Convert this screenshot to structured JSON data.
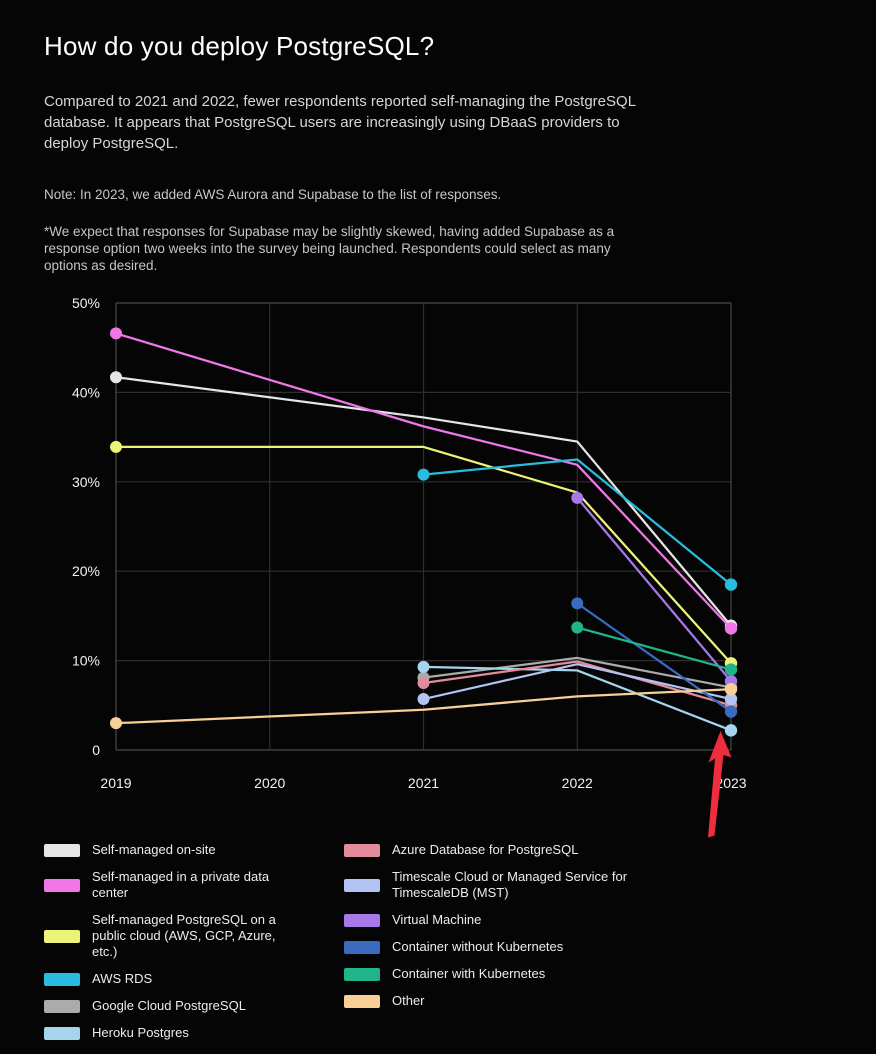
{
  "header": {
    "title": "How do you deploy PostgreSQL?",
    "intro": "Compared to 2021 and 2022, fewer respondents reported self-managing the PostgreSQL database. It appears that PostgreSQL users are increasingly using DBaaS providers to deploy PostgreSQL.",
    "note": "Note: In 2023, we added AWS Aurora and Supabase to the list of responses.",
    "footnote": "*We expect that responses for Supabase may be slightly skewed, having added Supabase as a response option two weeks into the survey being launched. Respondents could select as many options as desired."
  },
  "chart_data": {
    "type": "line",
    "categories": [
      "2019",
      "2020",
      "2021",
      "2022",
      "2023"
    ],
    "x_numeric": [
      2019,
      2020,
      2021,
      2022,
      2023
    ],
    "ylabel": "",
    "xlabel": "",
    "ylim": [
      0,
      50
    ],
    "yticks": [
      {
        "value": 50,
        "label": "50%"
      },
      {
        "value": 40,
        "label": "40%"
      },
      {
        "value": 30,
        "label": "30%"
      },
      {
        "value": 20,
        "label": "20%"
      },
      {
        "value": 10,
        "label": "10%"
      },
      {
        "value": 0,
        "label": "0"
      }
    ],
    "grid": true,
    "legend_position": "bottom-two-columns",
    "series": [
      {
        "name": "Self-managed on-site",
        "color": "#e5e5e5",
        "points": [
          {
            "year": 2019,
            "value": 41.7
          },
          {
            "year": 2021,
            "value": 37.2
          },
          {
            "year": 2022,
            "value": 34.5
          },
          {
            "year": 2023,
            "value": 13.9
          }
        ]
      },
      {
        "name": "Self-managed in a private data center",
        "color": "#f177e8",
        "points": [
          {
            "year": 2019,
            "value": 46.6
          },
          {
            "year": 2021,
            "value": 36.2
          },
          {
            "year": 2022,
            "value": 31.9
          },
          {
            "year": 2023,
            "value": 13.6
          }
        ]
      },
      {
        "name": "Self-managed PostgreSQL on a public cloud (AWS, GCP, Azure, etc.)",
        "color": "#edf278",
        "points": [
          {
            "year": 2019,
            "value": 33.9
          },
          {
            "year": 2021,
            "value": 33.9
          },
          {
            "year": 2022,
            "value": 28.8
          },
          {
            "year": 2023,
            "value": 9.7
          }
        ]
      },
      {
        "name": "AWS RDS",
        "color": "#29bcdf",
        "points": [
          {
            "year": 2021,
            "value": 30.8
          },
          {
            "year": 2022,
            "value": 32.5
          },
          {
            "year": 2023,
            "value": 18.5
          }
        ]
      },
      {
        "name": "Google Cloud PostgreSQL",
        "color": "#ababab",
        "points": [
          {
            "year": 2021,
            "value": 8.1
          },
          {
            "year": 2022,
            "value": 10.3
          },
          {
            "year": 2023,
            "value": 7.0
          }
        ]
      },
      {
        "name": "Heroku Postgres",
        "color": "#a5d4ed",
        "points": [
          {
            "year": 2021,
            "value": 9.3
          },
          {
            "year": 2022,
            "value": 8.9
          },
          {
            "year": 2023,
            "value": 2.2
          }
        ]
      },
      {
        "name": "Azure Database for PostgreSQL",
        "color": "#e28b9b",
        "points": [
          {
            "year": 2021,
            "value": 7.5
          },
          {
            "year": 2022,
            "value": 9.9
          },
          {
            "year": 2023,
            "value": 5.0
          }
        ]
      },
      {
        "name": "Timescale Cloud or Managed Service for TimescaleDB (MST)",
        "color": "#b3c3f3",
        "points": [
          {
            "year": 2021,
            "value": 5.7
          },
          {
            "year": 2022,
            "value": 9.6
          },
          {
            "year": 2023,
            "value": 5.7
          }
        ]
      },
      {
        "name": "Virtual Machine",
        "color": "#a678e8",
        "points": [
          {
            "year": 2022,
            "value": 28.2
          },
          {
            "year": 2023,
            "value": 7.7
          }
        ]
      },
      {
        "name": "Container without Kubernetes",
        "color": "#3a6bbf",
        "points": [
          {
            "year": 2022,
            "value": 16.4
          },
          {
            "year": 2023,
            "value": 4.3
          }
        ]
      },
      {
        "name": "Container with Kubernetes",
        "color": "#21b389",
        "points": [
          {
            "year": 2022,
            "value": 13.7
          },
          {
            "year": 2023,
            "value": 9.0
          }
        ]
      },
      {
        "name": "Other",
        "color": "#f7cf97",
        "points": [
          {
            "year": 2019,
            "value": 3.0
          },
          {
            "year": 2021,
            "value": 4.5
          },
          {
            "year": 2022,
            "value": 6.0
          },
          {
            "year": 2023,
            "value": 6.8
          }
        ]
      }
    ],
    "annotation": {
      "type": "arrow",
      "color": "#ee2d3f",
      "points_at": "Heroku Postgres 2023 data point"
    },
    "colors": {
      "grid": "#2e2e2e",
      "plot_border": "#4a4a4a",
      "tick_label": "#f2f2f2",
      "background": "#050505"
    }
  },
  "legend": {
    "left_column_count": 6
  }
}
